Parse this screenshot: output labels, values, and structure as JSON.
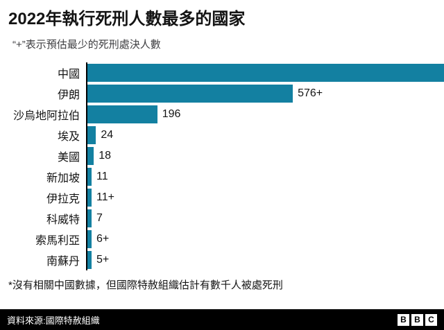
{
  "header": {
    "title": "2022年執行死刑人數最多的國家",
    "subtitle": "“+”表示預估最少的死刑處決人數"
  },
  "chart_data": {
    "type": "bar",
    "orientation": "horizontal",
    "bar_color": "#1380A1",
    "xmax": 1000,
    "grid": false,
    "note": "China bar drawn to full chart width (no numeric label shown)",
    "bars": [
      {
        "label": "中國",
        "value": 1000,
        "value_label": ""
      },
      {
        "label": "伊朗",
        "value": 576,
        "value_label": "576+"
      },
      {
        "label": "沙烏地阿拉伯",
        "value": 196,
        "value_label": "196"
      },
      {
        "label": "埃及",
        "value": 24,
        "value_label": "24"
      },
      {
        "label": "美國",
        "value": 18,
        "value_label": "18"
      },
      {
        "label": "新加坡",
        "value": 11,
        "value_label": "11"
      },
      {
        "label": "伊拉克",
        "value": 11,
        "value_label": "11+"
      },
      {
        "label": "科威特",
        "value": 7,
        "value_label": "7"
      },
      {
        "label": "索馬利亞",
        "value": 6,
        "value_label": "6+"
      },
      {
        "label": "南蘇丹",
        "value": 5,
        "value_label": "5+"
      }
    ]
  },
  "footnote": "*沒有相關中國數據，但國際特赦組織估計有數千人被處死刑",
  "footer": {
    "source": "資料來源:國際特赦組織",
    "logo_letters": [
      "B",
      "B",
      "C"
    ]
  }
}
